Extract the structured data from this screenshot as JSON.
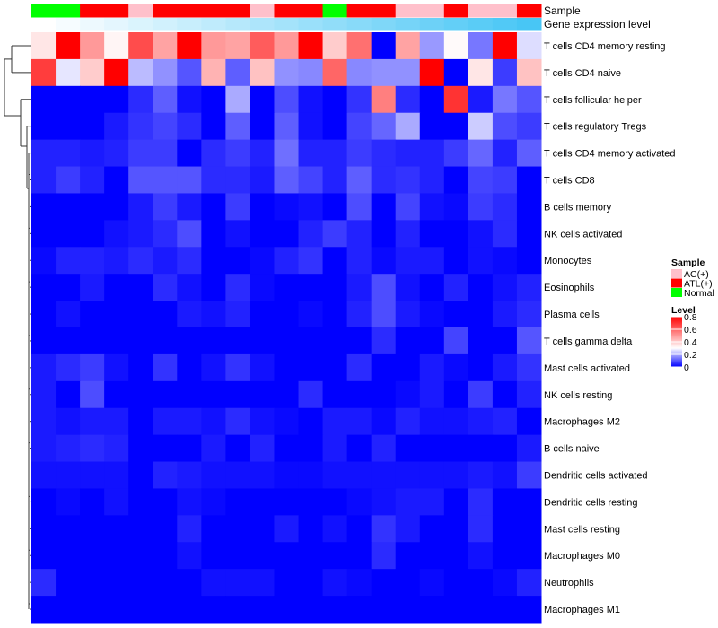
{
  "chart_data": {
    "type": "heatmap",
    "annotation_labels": {
      "sample": "Sample",
      "gene_expression": "Gene expression level"
    },
    "rows": [
      "T cells CD4 memory resting",
      "T cells CD4 naive",
      "T cells follicular helper",
      "T cells regulatory  Tregs",
      "T cells CD4 memory activated",
      "T cells CD8",
      "B cells memory",
      "NK cells activated",
      "Monocytes",
      "Eosinophils",
      "Plasma cells",
      "T cells gamma delta",
      "Mast cells activated",
      "NK cells resting",
      "Macrophages M2",
      "B cells naive",
      "Dendritic cells activated",
      "Dendritic cells resting",
      "Mast cells resting",
      "Macrophages M0",
      "Neutrophils",
      "Macrophages M1"
    ],
    "sample_groups": [
      "Normal",
      "Normal",
      "ATL(+)",
      "ATL(+)",
      "AC(+)",
      "ATL(+)",
      "ATL(+)",
      "ATL(+)",
      "ATL(+)",
      "AC(+)",
      "ATL(+)",
      "ATL(+)",
      "Normal",
      "ATL(+)",
      "ATL(+)",
      "AC(+)",
      "AC(+)",
      "ATL(+)",
      "AC(+)",
      "AC(+)",
      "ATL(+)"
    ],
    "gene_expression_level": [
      0,
      0.05,
      0.1,
      0.15,
      0.2,
      0.25,
      0.3,
      0.35,
      0.4,
      0.45,
      0.5,
      0.55,
      0.6,
      0.65,
      0.7,
      0.75,
      0.8,
      0.85,
      0.9,
      0.95,
      1
    ],
    "values": [
      [
        0.35,
        0.8,
        0.5,
        0.32,
        0.65,
        0.48,
        0.8,
        0.5,
        0.48,
        0.62,
        0.5,
        0.8,
        0.4,
        0.58,
        0,
        0.48,
        0.18,
        0.31,
        0.14,
        0.8,
        0.26
      ],
      [
        0.68,
        0.27,
        0.4,
        0.8,
        0.22,
        0.17,
        0.1,
        0.45,
        0.11,
        0.42,
        0.17,
        0.16,
        0.6,
        0.16,
        0.17,
        0.17,
        0.8,
        0,
        0.35,
        0.07,
        0.42
      ],
      [
        0,
        0,
        0,
        0,
        0.05,
        0.11,
        0.02,
        0,
        0.2,
        0,
        0.09,
        0.02,
        0,
        0.06,
        0.55,
        0.05,
        0,
        0.7,
        0.03,
        0.14,
        0.1
      ],
      [
        0,
        0,
        0,
        0.03,
        0.06,
        0.08,
        0.05,
        0,
        0.11,
        0,
        0.11,
        0.02,
        0,
        0.08,
        0.12,
        0.2,
        0,
        0,
        0.24,
        0.09,
        0.07
      ],
      [
        0.04,
        0.04,
        0.03,
        0.04,
        0.07,
        0.07,
        0,
        0.05,
        0.07,
        0.04,
        0.13,
        0.04,
        0.04,
        0.07,
        0.05,
        0.04,
        0.04,
        0.07,
        0.12,
        0.04,
        0.11
      ],
      [
        0.04,
        0.07,
        0.04,
        0,
        0.1,
        0.1,
        0.1,
        0.05,
        0.05,
        0.03,
        0.11,
        0.08,
        0.04,
        0.11,
        0.05,
        0.06,
        0.04,
        0,
        0.08,
        0.07,
        0
      ],
      [
        0,
        0,
        0,
        0,
        0.03,
        0.07,
        0.03,
        0,
        0.07,
        0,
        0.01,
        0.02,
        0,
        0.09,
        0,
        0.08,
        0.02,
        0.01,
        0.07,
        0.05,
        0
      ],
      [
        0,
        0,
        0,
        0.02,
        0.03,
        0.05,
        0.09,
        0,
        0.02,
        0,
        0,
        0.04,
        0.07,
        0.04,
        0,
        0.04,
        0,
        0,
        0.02,
        0.05,
        0
      ],
      [
        0.01,
        0.04,
        0.04,
        0.03,
        0.05,
        0.03,
        0.05,
        0,
        0,
        0.01,
        0.04,
        0.06,
        0,
        0.04,
        0.01,
        0.03,
        0.03,
        0,
        0.02,
        0.01,
        0
      ],
      [
        0,
        0,
        0.03,
        0,
        0,
        0.05,
        0.02,
        0,
        0.05,
        0.01,
        0,
        0,
        0,
        0.03,
        0.09,
        0.02,
        0,
        0.04,
        0,
        0.02,
        0.04
      ],
      [
        0,
        0.02,
        0,
        0,
        0,
        0,
        0.03,
        0.02,
        0.04,
        0,
        0,
        0.01,
        0,
        0.04,
        0.09,
        0.03,
        0.01,
        0,
        0,
        0.03,
        0.05
      ],
      [
        0,
        0,
        0,
        0,
        0,
        0,
        0,
        0,
        0,
        0,
        0,
        0,
        0,
        0,
        0.05,
        0,
        0,
        0.08,
        0,
        0,
        0.1
      ],
      [
        0.03,
        0.05,
        0.07,
        0.02,
        0,
        0.06,
        0,
        0.02,
        0.06,
        0.02,
        0,
        0,
        0,
        0.05,
        0,
        0,
        0.03,
        0.01,
        0,
        0.03,
        0.06
      ],
      [
        0.03,
        0,
        0.09,
        0,
        0,
        0,
        0,
        0,
        0,
        0,
        0,
        0.05,
        0,
        0,
        0,
        0.01,
        0.03,
        0,
        0.07,
        0,
        0.04
      ],
      [
        0.03,
        0.02,
        0.03,
        0.03,
        0,
        0.03,
        0.03,
        0.02,
        0.05,
        0.02,
        0.01,
        0,
        0.03,
        0.03,
        0.01,
        0.04,
        0.02,
        0.02,
        0.03,
        0.04,
        0
      ],
      [
        0.03,
        0.04,
        0.05,
        0.04,
        0,
        0,
        0,
        0.03,
        0,
        0.04,
        0,
        0,
        0.03,
        0,
        0.04,
        0,
        0,
        0,
        0,
        0,
        0.03
      ],
      [
        0.02,
        0.02,
        0.02,
        0.02,
        0,
        0.04,
        0.03,
        0.02,
        0.02,
        0.02,
        0.01,
        0.01,
        0.02,
        0.02,
        0.02,
        0.02,
        0.02,
        0.02,
        0.03,
        0.02,
        0.07
      ],
      [
        0,
        0.01,
        0,
        0.02,
        0,
        0,
        0.02,
        0.01,
        0,
        0,
        0,
        0,
        0,
        0.01,
        0.02,
        0.03,
        0.03,
        0,
        0.05,
        0,
        0
      ],
      [
        0,
        0,
        0,
        0,
        0,
        0,
        0.04,
        0,
        0,
        0,
        0.03,
        0,
        0.02,
        0,
        0.06,
        0.03,
        0,
        0,
        0.05,
        0,
        0
      ],
      [
        0,
        0,
        0,
        0,
        0,
        0,
        0.02,
        0,
        0,
        0,
        0,
        0,
        0,
        0,
        0.05,
        0,
        0,
        0,
        0.02,
        0,
        0
      ],
      [
        0.05,
        0,
        0,
        0,
        0,
        0,
        0,
        0.02,
        0.02,
        0.02,
        0,
        0,
        0.02,
        0.01,
        0,
        0,
        0.01,
        0,
        0,
        0.01,
        0.04
      ],
      [
        0,
        0,
        0,
        0,
        0,
        0,
        0,
        0,
        0,
        0,
        0,
        0,
        0,
        0,
        0,
        0,
        0,
        0,
        0,
        0,
        0
      ]
    ],
    "legend": {
      "sample": {
        "title": "Sample",
        "entries": [
          {
            "label": "AC(+)",
            "color": "#ffc0cb"
          },
          {
            "label": "ATL(+)",
            "color": "#ff0000"
          },
          {
            "label": "Normal",
            "color": "#00ff00"
          }
        ]
      },
      "level": {
        "title": "Level",
        "ticks": [
          "0.8",
          "0.6",
          "0.4",
          "0.2",
          "0"
        ],
        "tick_values": [
          0.8,
          0.6,
          0.4,
          0.2,
          0
        ]
      }
    },
    "color_scale": {
      "low": "#0000ff",
      "mid": "#ffffff",
      "high": "#ff0000",
      "range": [
        0,
        0.8
      ],
      "mid_value": 0.3
    },
    "gene_expression_colors": {
      "low": "#ffffff",
      "high": "#48c6f5"
    }
  }
}
